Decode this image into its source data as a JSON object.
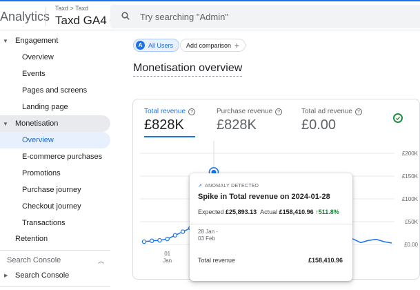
{
  "header": {
    "app_title": "Analytics",
    "breadcrumb": "Taxd > Taxd",
    "property": "Taxd GA4",
    "search_placeholder": "Try searching \"Admin\""
  },
  "sidebar": {
    "items": [
      {
        "label": "Engagement",
        "level": "top",
        "expanded": true
      },
      {
        "label": "Overview",
        "level": "sub"
      },
      {
        "label": "Events",
        "level": "sub"
      },
      {
        "label": "Pages and screens",
        "level": "sub"
      },
      {
        "label": "Landing page",
        "level": "sub"
      },
      {
        "label": "Monetisation",
        "level": "top",
        "expanded": true,
        "highlighted": true
      },
      {
        "label": "Overview",
        "level": "sub",
        "selected": true
      },
      {
        "label": "E-commerce purchases",
        "level": "sub"
      },
      {
        "label": "Promotions",
        "level": "sub"
      },
      {
        "label": "Purchase journey",
        "level": "sub"
      },
      {
        "label": "Checkout journey",
        "level": "sub"
      },
      {
        "label": "Transactions",
        "level": "sub"
      },
      {
        "label": "Retention",
        "level": "top-noarrow"
      }
    ],
    "section_title": "Search Console",
    "section_item": "Search Console"
  },
  "main": {
    "all_users_chip": "All Users",
    "all_users_avatar": "A",
    "add_comparison": "Add comparison",
    "page_title": "Monetisation overview",
    "metrics": [
      {
        "label": "Total revenue",
        "value": "£828K",
        "active": true
      },
      {
        "label": "Purchase revenue",
        "value": "£828K",
        "active": false
      },
      {
        "label": "Total ad revenue",
        "value": "£0.00",
        "active": false
      }
    ],
    "tooltip": {
      "badge": "ANOMALY DETECTED",
      "headline": "Spike in Total revenue on 2024-01-28",
      "expected_label": "Expected",
      "expected_value": "£25,893.13",
      "actual_label": "Actual",
      "actual_value": "£158,410.96",
      "change": "↑511.8%",
      "range_start": "28 Jan -",
      "range_end": "03 Feb",
      "metric_label": "Total revenue",
      "metric_value": "£158,410.96"
    }
  },
  "colors": {
    "accent": "#1a73e8",
    "positive": "#188038",
    "check": "#1e8e3e"
  },
  "chart_data": {
    "type": "line",
    "ylabel_ticks": [
      "£0.00",
      "£50K",
      "£100K",
      "£150K",
      "£200K"
    ],
    "ylim": [
      0,
      200000
    ],
    "x_tick_labels": [
      {
        "day": "01",
        "month": "Jan"
      }
    ],
    "series": [
      {
        "values": [
          [
            0,
            6000
          ],
          [
            1,
            8000
          ],
          [
            2,
            9000
          ],
          [
            3,
            12000
          ],
          [
            4,
            20000
          ],
          [
            5,
            28000
          ],
          [
            6,
            36000
          ],
          [
            7,
            50000
          ],
          [
            8,
            70000
          ],
          [
            9,
            158410.96
          ],
          [
            10,
            8000
          ],
          [
            11,
            6000
          ],
          [
            12,
            5000
          ],
          [
            13,
            5000
          ],
          [
            14,
            4500
          ],
          [
            15,
            5000
          ],
          [
            16,
            5500
          ],
          [
            17,
            7000
          ],
          [
            18,
            11000
          ],
          [
            19,
            7500
          ],
          [
            20,
            9000
          ],
          [
            21,
            8500
          ],
          [
            22,
            11000
          ],
          [
            23,
            7000
          ],
          [
            24,
            10000
          ],
          [
            25,
            6000
          ],
          [
            26,
            9000
          ],
          [
            27,
            12000
          ],
          [
            28,
            4000
          ],
          [
            29,
            9000
          ],
          [
            30,
            11000
          ],
          [
            31,
            6000
          ],
          [
            32,
            3000
          ]
        ]
      }
    ]
  }
}
